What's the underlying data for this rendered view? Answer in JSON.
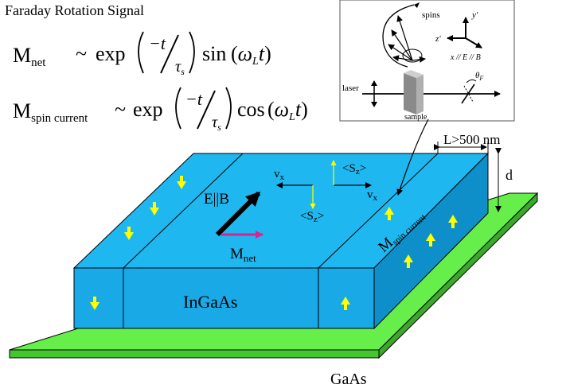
{
  "title": "Faraday Rotation Signal",
  "equations": {
    "net": {
      "symbol": "M",
      "subscript": "net",
      "tilde": "~",
      "exp": "exp",
      "numerator": "−t",
      "denominator": "τ",
      "denominator_sub": "s",
      "func": "sin",
      "omega": "ω",
      "omega_sub": "L",
      "var": "t"
    },
    "spin_current": {
      "symbol": "M",
      "subscript": "spin current",
      "tilde": "~",
      "exp": "exp",
      "numerator": "−t",
      "denominator": "τ",
      "denominator_sub": "s",
      "func": "cos",
      "omega": "ω",
      "omega_sub": "L",
      "var": "t"
    }
  },
  "inset": {
    "spins_label": "spins",
    "axis_y": "y'",
    "axis_z": "z'",
    "axis_x": "x // E // B",
    "laser_label": "laser",
    "sample_label": "sample",
    "theta_label": "θ",
    "theta_sub": "F"
  },
  "labels": {
    "width": "L>500 nm",
    "thickness": "d",
    "field": "E||B",
    "m_net": "M",
    "m_net_sub": "net",
    "vx_left": "v",
    "vx_left_sub": "x",
    "vx_right": "v",
    "vx_right_sub": "x",
    "sz_top": "<S",
    "sz_top_sub": "z",
    "sz_top_end": ">",
    "sz_bottom": "<S",
    "sz_bottom_sub": "z",
    "sz_bottom_end": ">",
    "m_spin": "M",
    "m_spin_sub": "spin current",
    "layer": "InGaAs",
    "substrate": "GaAs"
  },
  "colors": {
    "slab_top": "#1fb7ef",
    "slab_front": "#19a9e6",
    "slab_side": "#0f8fc9",
    "substrate": "#66ee4a",
    "spin_arrow": "#ffff00",
    "m_net_arrow": "#e0208c"
  }
}
